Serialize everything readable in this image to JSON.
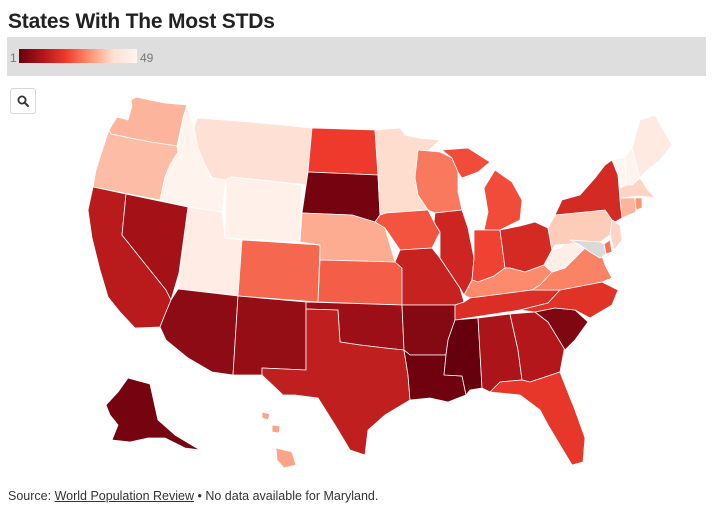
{
  "title": "States With The Most STDs",
  "legend": {
    "min_label": "1",
    "max_label": "49",
    "colors": [
      "#67000d",
      "#b0151a",
      "#ef3b2c",
      "#fc9272",
      "#fee0d2",
      "#fff5f0"
    ]
  },
  "search": {
    "icon": "search-icon"
  },
  "footer": {
    "prefix": "Source:",
    "source_link": "World Population Review",
    "note": "• No data available for Maryland."
  },
  "map_data": {
    "metric": "rank",
    "states": [
      {
        "id": "WA",
        "rank": 34
      },
      {
        "id": "OR",
        "rank": 35
      },
      {
        "id": "CA",
        "rank": 12
      },
      {
        "id": "NV",
        "rank": 9
      },
      {
        "id": "ID",
        "rank": 48
      },
      {
        "id": "MT",
        "rank": 40
      },
      {
        "id": "WY",
        "rank": 47
      },
      {
        "id": "UT",
        "rank": 45
      },
      {
        "id": "AZ",
        "rank": 6
      },
      {
        "id": "CO",
        "rank": 25
      },
      {
        "id": "NM",
        "rank": 7
      },
      {
        "id": "ND",
        "rank": 20
      },
      {
        "id": "SD",
        "rank": 3
      },
      {
        "id": "NE",
        "rank": 33
      },
      {
        "id": "KS",
        "rank": 24
      },
      {
        "id": "OK",
        "rank": 8
      },
      {
        "id": "TX",
        "rank": 13
      },
      {
        "id": "MN",
        "rank": 39
      },
      {
        "id": "IA",
        "rank": 23
      },
      {
        "id": "MO",
        "rank": 14
      },
      {
        "id": "AR",
        "rank": 5
      },
      {
        "id": "LA",
        "rank": 2
      },
      {
        "id": "WI",
        "rank": 27
      },
      {
        "id": "IL",
        "rank": 15
      },
      {
        "id": "MI",
        "rank": 22
      },
      {
        "id": "IN",
        "rank": 21
      },
      {
        "id": "OH",
        "rank": 16
      },
      {
        "id": "KY",
        "rank": 29
      },
      {
        "id": "TN",
        "rank": 17
      },
      {
        "id": "MS",
        "rank": 1
      },
      {
        "id": "AL",
        "rank": 10
      },
      {
        "id": "GA",
        "rank": 11
      },
      {
        "id": "FL",
        "rank": 19
      },
      {
        "id": "SC",
        "rank": 4
      },
      {
        "id": "NC",
        "rank": 18
      },
      {
        "id": "VA",
        "rank": 28
      },
      {
        "id": "WV",
        "rank": 46
      },
      {
        "id": "PA",
        "rank": 37
      },
      {
        "id": "NY",
        "rank": 16
      },
      {
        "id": "VT",
        "rank": 49
      },
      {
        "id": "NH",
        "rank": 48
      },
      {
        "id": "ME",
        "rank": 44
      },
      {
        "id": "MA",
        "rank": 38
      },
      {
        "id": "CT",
        "rank": 34
      },
      {
        "id": "RI",
        "rank": 30
      },
      {
        "id": "NJ",
        "rank": 38
      },
      {
        "id": "DE",
        "rank": 26
      },
      {
        "id": "AK",
        "rank": 3
      },
      {
        "id": "HI",
        "rank": 32
      }
    ]
  }
}
